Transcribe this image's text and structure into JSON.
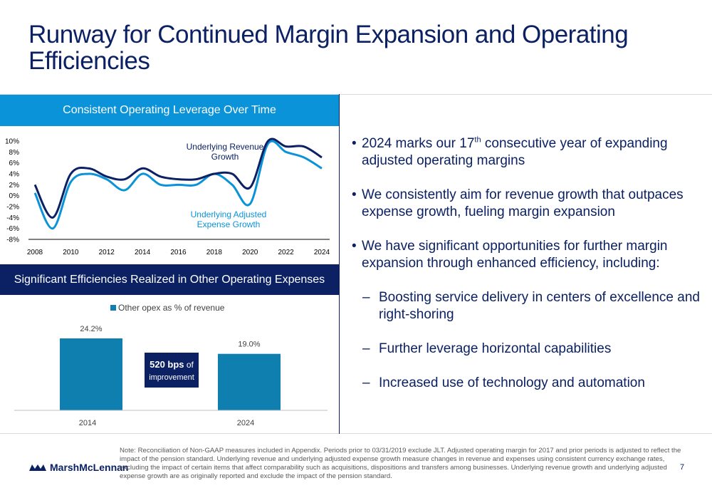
{
  "title": "Runway for Continued Margin Expansion and Operating Efficiencies",
  "panel1": {
    "header": "Consistent Operating Leverage Over Time"
  },
  "panel2": {
    "header": "Significant Efficiencies Realized in Other Operating Expenses"
  },
  "chart_data": [
    {
      "type": "line",
      "title": "Consistent Operating Leverage Over Time",
      "x": [
        2008,
        2009,
        2010,
        2011,
        2012,
        2013,
        2014,
        2015,
        2016,
        2017,
        2018,
        2019,
        2020,
        2021,
        2022,
        2023,
        2024
      ],
      "x_ticks": [
        "2008",
        "2010",
        "2012",
        "2014",
        "2016",
        "2018",
        "2020",
        "2022",
        "2024"
      ],
      "y_ticks": [
        "10%",
        "8%",
        "6%",
        "4%",
        "2%",
        "0%",
        "-2%",
        "-4%",
        "-6%",
        "-8%"
      ],
      "ylim": [
        -8,
        10
      ],
      "series": [
        {
          "name": "Underlying Revenue Growth",
          "color": "#0b2163",
          "values": [
            2,
            -4,
            4,
            5,
            3.5,
            3,
            5,
            3.5,
            3,
            3,
            4,
            4,
            1.5,
            10,
            9,
            9,
            7
          ]
        },
        {
          "name": "Underlying Adjusted Expense Growth",
          "color": "#0a93d9",
          "values": [
            0.5,
            -6,
            2.5,
            4,
            3,
            1,
            4,
            2,
            2,
            2,
            4,
            2,
            -1.5,
            9.5,
            8,
            7,
            5
          ]
        }
      ],
      "annotations": [
        {
          "line1": "Underlying Revenue",
          "line2": "Growth"
        },
        {
          "line1": "Underlying Adjusted",
          "line2": "Expense Growth"
        }
      ]
    },
    {
      "type": "bar",
      "title": "Significant Efficiencies Realized in Other Operating Expenses",
      "categories": [
        "2014",
        "2024"
      ],
      "values": [
        24.2,
        19.0
      ],
      "data_labels": [
        "24.2%",
        "19.0%"
      ],
      "legend": "Other opex as % of revenue",
      "color": "#0f7fb0",
      "ylim": [
        0,
        30
      ],
      "callout": {
        "bold": "520 bps",
        "rest": " of",
        "line2": "improvement"
      }
    }
  ],
  "bullets": {
    "b1_pre": "2024 marks our 17",
    "b1_sup": "th",
    "b1_post": " consecutive year of expanding adjusted operating margins",
    "b2": "We consistently aim for revenue growth that outpaces expense growth, fueling margin expansion",
    "b3": "We have significant opportunities for further margin expansion through enhanced efficiency, including:",
    "subs": [
      "Boosting service delivery in centers of excellence and right-shoring",
      "Further leverage horizontal capabilities",
      "Increased use of technology and automation"
    ],
    "dot": "•",
    "dash": "–"
  },
  "footer": {
    "logo_text": "MarshMcLennan",
    "note": "Note: Reconciliation of Non-GAAP measures included in Appendix. Periods prior to 03/31/2019 exclude JLT. Adjusted operating margin for 2017 and prior periods is adjusted to reflect the impact of the pension standard. Underlying revenue and underlying adjusted expense growth measure changes in revenue and expenses using consistent currency exchange rates, excluding the impact of certain items that affect comparability such as acquisitions, dispositions and transfers among businesses. Underlying revenue growth and underlying adjusted expense growth are as originally reported and exclude the impact of the pension standard.",
    "page": "7"
  }
}
